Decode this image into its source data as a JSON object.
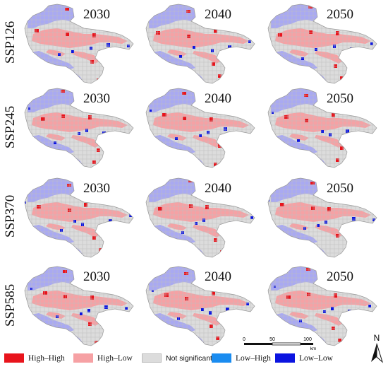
{
  "rows": [
    {
      "scenario": "SSP126",
      "years": [
        "2030",
        "2040",
        "2050"
      ]
    },
    {
      "scenario": "SSP245",
      "years": [
        "2030",
        "2040",
        "2050"
      ]
    },
    {
      "scenario": "SSP370",
      "years": [
        "2030",
        "2040",
        "2050"
      ]
    },
    {
      "scenario": "SSP585",
      "years": [
        "2030",
        "2040",
        "2050"
      ]
    }
  ],
  "legend": [
    {
      "label": "High–High",
      "color": "#e8141c"
    },
    {
      "label": "High–Low",
      "color": "#f6a1a4"
    },
    {
      "label": "Not significant",
      "color": "#dcdcdc"
    },
    {
      "label": "Low–High",
      "color": "#1a8cf0"
    },
    {
      "label": "Low–Low",
      "color": "#0b14e0"
    }
  ],
  "scale_bar": {
    "ticks": [
      "0",
      "50",
      "100"
    ],
    "unit": "km"
  },
  "north_arrow": {
    "label": "N"
  },
  "colors": {
    "high_high": "#e8141c",
    "high_low": "#f6a1a4",
    "not_significant": "#dcdcdc",
    "low_high": "#1a8cf0",
    "low_low": "#0b14e0",
    "low_low_region": "#a9a9f2"
  }
}
